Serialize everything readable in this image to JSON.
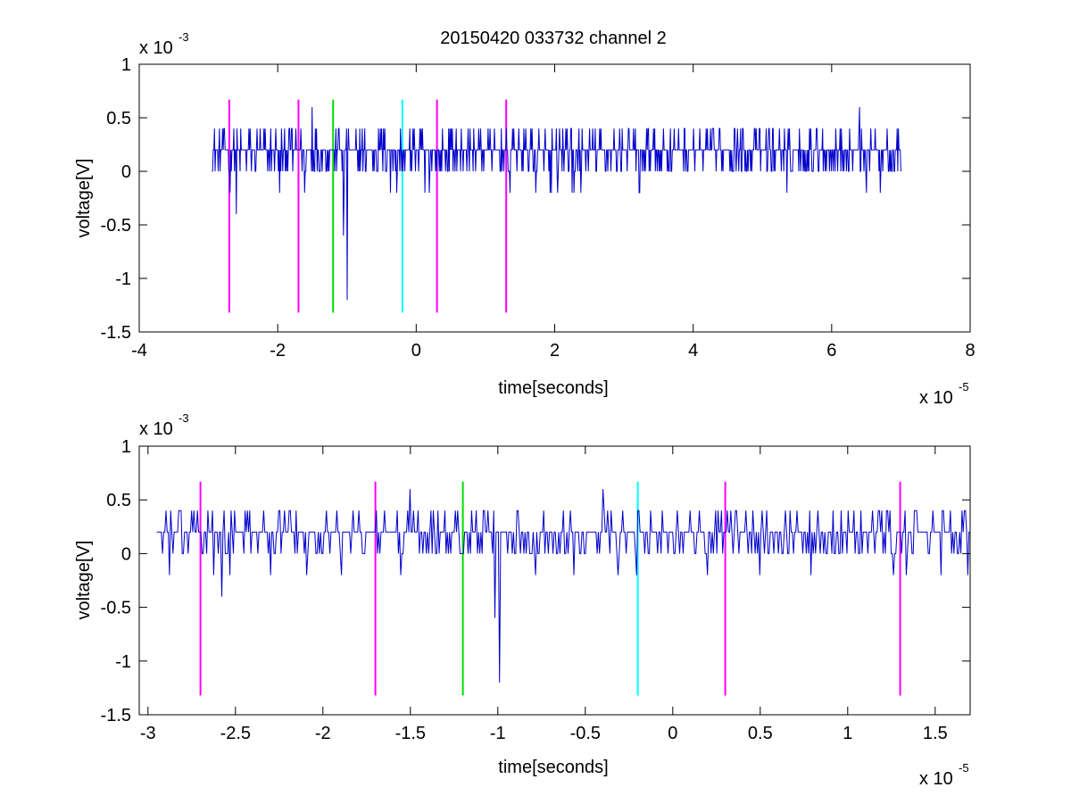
{
  "figure_title": "20150420 033732 channel 2",
  "colors": {
    "signal": "#0000cc",
    "marker_magenta": "#ff00ff",
    "marker_green": "#00dd00",
    "marker_cyan": "#00ffff",
    "axes": "#000000"
  },
  "chart_data": [
    {
      "type": "line",
      "title": "20150420 033732 channel 2",
      "xlabel": "time[seconds]",
      "ylabel": "voltage[V]",
      "x_exponent_label": "x 10",
      "x_exponent": "-5",
      "y_exponent_label": "x 10",
      "y_exponent": "-3",
      "xlim": [
        -4,
        8
      ],
      "ylim": [
        -1.5,
        1
      ],
      "x_ticks": [
        -4,
        -2,
        0,
        2,
        4,
        6,
        8
      ],
      "x_tick_labels": [
        "-4",
        "-2",
        "0",
        "2",
        "4",
        "6",
        "8"
      ],
      "y_ticks": [
        1,
        0.5,
        0,
        -0.5,
        -1,
        -1.5
      ],
      "y_tick_labels": [
        "1",
        "0.5",
        "0",
        "-0.5",
        "-1",
        "-1.5"
      ],
      "grid": false,
      "series": [
        {
          "color": "#0000cc",
          "x_range": [
            -2.95,
            7.0
          ],
          "baseline": 0.2,
          "levels": [
            0,
            0.2,
            0.4
          ],
          "spikes": [
            {
              "x": -2.6,
              "y": -0.4
            },
            {
              "x": -1.0,
              "y": -1.2
            },
            {
              "x": -1.05,
              "y": -0.6
            },
            {
              "x": -1.5,
              "y": 0.6
            },
            {
              "x": 6.4,
              "y": 0.6
            },
            {
              "x": 6.5,
              "y": 0.6
            },
            {
              "x": 6.5,
              "y": -0.2
            },
            {
              "x": 6.7,
              "y": -0.2
            }
          ]
        }
      ],
      "vertical_markers": [
        {
          "x": -2.7,
          "color": "magenta",
          "y_range": [
            -1.32,
            0.67
          ]
        },
        {
          "x": -1.7,
          "color": "magenta",
          "y_range": [
            -1.32,
            0.67
          ]
        },
        {
          "x": -1.2,
          "color": "green",
          "y_range": [
            -1.32,
            0.67
          ]
        },
        {
          "x": -0.2,
          "color": "cyan",
          "y_range": [
            -1.32,
            0.67
          ]
        },
        {
          "x": 0.3,
          "color": "magenta",
          "y_range": [
            -1.32,
            0.67
          ]
        },
        {
          "x": 1.3,
          "color": "magenta",
          "y_range": [
            -1.32,
            0.67
          ]
        }
      ]
    },
    {
      "type": "line",
      "xlabel": "time[seconds]",
      "ylabel": "voltage[V]",
      "x_exponent_label": "x 10",
      "x_exponent": "-5",
      "y_exponent_label": "x 10",
      "y_exponent": "-3",
      "xlim": [
        -3.05,
        1.7
      ],
      "ylim": [
        -1.5,
        1
      ],
      "x_ticks": [
        -3,
        -2.5,
        -2,
        -1.5,
        -1,
        -0.5,
        0,
        0.5,
        1,
        1.5
      ],
      "x_tick_labels": [
        "-3",
        "-2.5",
        "-2",
        "-1.5",
        "-1",
        "-0.5",
        "0",
        "0.5",
        "1",
        "1.5"
      ],
      "y_ticks": [
        1,
        0.5,
        0,
        -0.5,
        -1,
        -1.5
      ],
      "y_tick_labels": [
        "1",
        "0.5",
        "0",
        "-0.5",
        "-1",
        "-1.5"
      ],
      "grid": false,
      "series": [
        {
          "color": "#0000cc",
          "x_range": [
            -2.95,
            1.7
          ],
          "baseline": 0.2,
          "levels": [
            0,
            0.2,
            0.4
          ],
          "spikes": [
            {
              "x": -2.58,
              "y": -0.4
            },
            {
              "x": -1.5,
              "y": 0.6
            },
            {
              "x": -0.99,
              "y": -1.2
            },
            {
              "x": -1.02,
              "y": -0.6
            },
            {
              "x": -0.4,
              "y": 0.6
            }
          ]
        }
      ],
      "vertical_markers": [
        {
          "x": -2.7,
          "color": "magenta",
          "y_range": [
            -1.32,
            0.67
          ]
        },
        {
          "x": -1.7,
          "color": "magenta",
          "y_range": [
            -1.32,
            0.67
          ]
        },
        {
          "x": -1.2,
          "color": "green",
          "y_range": [
            -1.32,
            0.67
          ]
        },
        {
          "x": -0.2,
          "color": "cyan",
          "y_range": [
            -1.32,
            0.67
          ]
        },
        {
          "x": 0.3,
          "color": "magenta",
          "y_range": [
            -1.32,
            0.67
          ]
        },
        {
          "x": 1.3,
          "color": "magenta",
          "y_range": [
            -1.32,
            0.67
          ]
        }
      ]
    }
  ]
}
